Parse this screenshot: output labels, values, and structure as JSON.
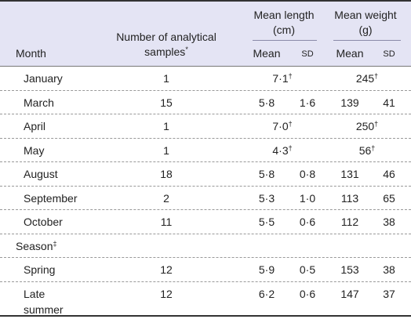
{
  "header": {
    "month": "Month",
    "samples": {
      "text": "Number of analytical samples",
      "sup": "*"
    },
    "length": "Mean length (cm)",
    "weight": "Mean weight (g)",
    "length_sub": [
      "Mean",
      "SD"
    ],
    "weight_sub": [
      "Mean",
      "SD"
    ]
  },
  "table": {
    "rows": [
      {
        "month": "January",
        "n": "1",
        "length": {
          "text": "7·1",
          "sup": "†"
        },
        "weight": {
          "text": "245",
          "sup": "†"
        }
      },
      {
        "month": "March",
        "n": "15",
        "length_mean": "5·8",
        "length_sd": "1·6",
        "weight_mean": "139",
        "weight_sd": "41"
      },
      {
        "month": "April",
        "n": "1",
        "length": {
          "text": "7·0",
          "sup": "†"
        },
        "weight": {
          "text": "250",
          "sup": "†"
        }
      },
      {
        "month": "May",
        "n": "1",
        "length": {
          "text": "4·3",
          "sup": "†"
        },
        "weight": {
          "text": "56",
          "sup": "†"
        }
      },
      {
        "month": "August",
        "n": "18",
        "length_mean": "5·8",
        "length_sd": "0·8",
        "weight_mean": "131",
        "weight_sd": "46"
      },
      {
        "month": "September",
        "n": "2",
        "length_mean": "5·3",
        "length_sd": "1·0",
        "weight_mean": "113",
        "weight_sd": "65"
      },
      {
        "month": "October",
        "n": "11",
        "length_mean": "5·5",
        "length_sd": "0·6",
        "weight_mean": "112",
        "weight_sd": "38"
      },
      {
        "section": {
          "text": "Season",
          "sup": "‡"
        }
      },
      {
        "month": "Spring",
        "n": "12",
        "length_mean": "5·9",
        "length_sd": "0·5",
        "weight_mean": "153",
        "weight_sd": "38"
      },
      {
        "month": "Late summer",
        "n": "12",
        "length_mean": "6·2",
        "length_sd": "0·6",
        "weight_mean": "147",
        "weight_sd": "37"
      }
    ]
  }
}
